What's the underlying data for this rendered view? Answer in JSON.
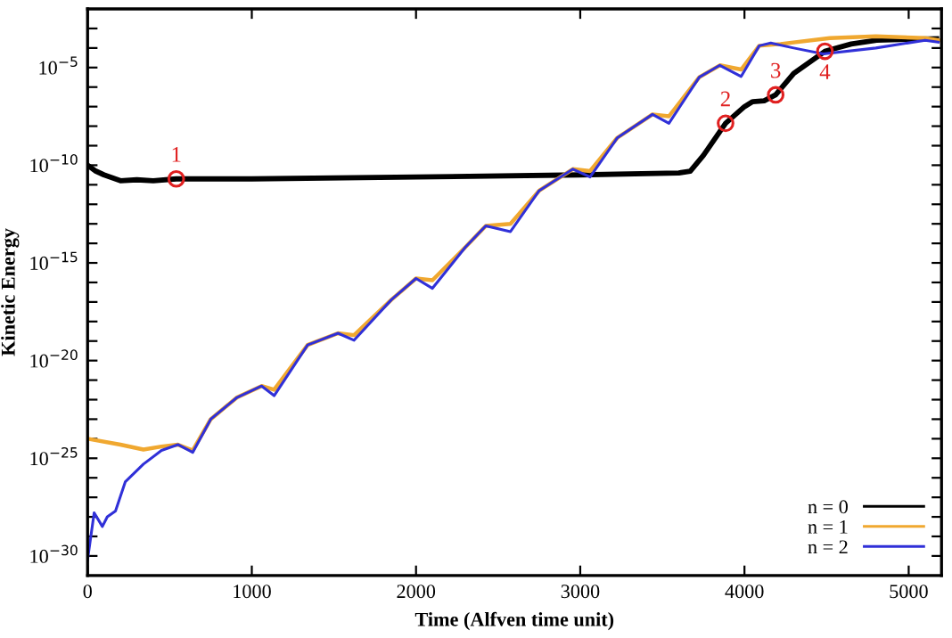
{
  "chart_data": {
    "type": "line",
    "xlabel": "Time (Alfven time unit)",
    "ylabel": "Kinetic Energy",
    "log": "y",
    "grid": false,
    "legend": "bottom right",
    "xlim": [
      0,
      5200
    ],
    "xticks": [
      0,
      1000,
      2000,
      3000,
      4000,
      5000
    ],
    "ylim": [
      1e-31,
      0.01
    ],
    "yticks": [
      {
        "value": 1e-30,
        "label": "10$^{−30}$"
      },
      {
        "value": 1e-29,
        "label": null
      },
      {
        "value": 1e-28,
        "label": null
      },
      {
        "value": 1e-27,
        "label": null
      },
      {
        "value": 1e-26,
        "label": null
      },
      {
        "value": 1e-25,
        "label": "10$^{−25}$"
      },
      {
        "value": 1e-24,
        "label": null
      },
      {
        "value": 1e-23,
        "label": null
      },
      {
        "value": 1e-22,
        "label": null
      },
      {
        "value": 1e-21,
        "label": null
      },
      {
        "value": 1e-20,
        "label": "10$^{−20}$"
      },
      {
        "value": 1e-19,
        "label": null
      },
      {
        "value": 1e-18,
        "label": null
      },
      {
        "value": 1e-17,
        "label": null
      },
      {
        "value": 1e-16,
        "label": null
      },
      {
        "value": 1e-15,
        "label": "10$^{−15}$"
      },
      {
        "value": 1e-14,
        "label": null
      },
      {
        "value": 1e-13,
        "label": null
      },
      {
        "value": 1e-12,
        "label": null
      },
      {
        "value": 1e-11,
        "label": null
      },
      {
        "value": 1e-10,
        "label": "10$^{−10}$"
      },
      {
        "value": 1e-09,
        "label": null
      },
      {
        "value": 1e-08,
        "label": null
      },
      {
        "value": 1e-07,
        "label": null
      },
      {
        "value": 1e-06,
        "label": null
      },
      {
        "value": 1e-05,
        "label": "10$^{−5}$"
      },
      {
        "value": 0.0001,
        "label": null
      },
      {
        "value": 0.001,
        "label": null
      }
    ],
    "series": [
      {
        "name": "n = 0",
        "color": "#000000",
        "x": [
          0,
          50,
          100,
          200,
          300,
          400,
          540,
          1000,
          2000,
          3000,
          3600,
          3670,
          3750,
          3885,
          4000,
          4050,
          4120,
          4190,
          4300,
          4490,
          4650,
          4805,
          5000,
          5170
        ],
        "values": [
          1e-10,
          5e-11,
          3.2e-11,
          1.6e-11,
          1.8e-11,
          1.6e-11,
          2e-11,
          2e-11,
          2.5e-11,
          3.2e-11,
          4e-11,
          5e-11,
          3.2e-10,
          1.4e-08,
          1e-07,
          1.8e-07,
          2e-07,
          4e-07,
          5e-06,
          6.8e-05,
          0.00016,
          0.00025,
          0.00028,
          0.0003
        ]
      },
      {
        "name": "n = 1",
        "color": "#f0a830",
        "x": [
          0,
          200,
          340,
          450,
          550,
          640,
          750,
          910,
          1060,
          1136,
          1340,
          1525,
          1623,
          1850,
          2000,
          2100,
          2300,
          2425,
          2575,
          2750,
          2955,
          3060,
          3225,
          3440,
          3540,
          3725,
          3850,
          3980,
          4090,
          4220,
          4520,
          4800,
          5100,
          5180
        ],
        "values": [
          1e-24,
          5e-25,
          2.8e-25,
          4e-25,
          5e-25,
          2.5e-25,
          1e-23,
          1.3e-22,
          5e-22,
          3.2e-22,
          6.3e-20,
          2.5e-19,
          2e-19,
          1.3e-17,
          1.6e-16,
          1.3e-16,
          6.3e-15,
          7.9e-14,
          1e-13,
          5e-12,
          6.3e-11,
          5e-11,
          2.5e-09,
          4e-08,
          3.2e-08,
          3.2e-06,
          1.3e-05,
          7.9e-06,
          0.00013,
          0.00016,
          0.00032,
          0.0004,
          0.00032,
          0.00025
        ]
      },
      {
        "name": "n = 2",
        "color": "#3030d8",
        "x": [
          0,
          40,
          90,
          120,
          170,
          230,
          340,
          450,
          550,
          640,
          750,
          910,
          1060,
          1136,
          1340,
          1525,
          1623,
          1850,
          2000,
          2100,
          2300,
          2425,
          2575,
          2750,
          2955,
          3060,
          3225,
          3440,
          3540,
          3725,
          3850,
          3980,
          4090,
          4160,
          4300,
          4480,
          4800,
          5100,
          5180
        ],
        "values": [
          6.3e-31,
          1.6e-28,
          3.2e-29,
          1e-28,
          2e-28,
          6.3e-27,
          5e-26,
          2.5e-25,
          5e-25,
          2e-25,
          1e-23,
          1.3e-22,
          5e-22,
          1.6e-22,
          6.3e-20,
          2.5e-19,
          1.1e-19,
          1.3e-17,
          1.6e-16,
          5e-17,
          6.3e-15,
          7.9e-14,
          4e-14,
          5e-12,
          6.3e-11,
          2.5e-11,
          2.5e-09,
          4e-08,
          1.4e-08,
          3.2e-06,
          1.3e-05,
          3.5e-06,
          0.00013,
          0.00018,
          0.0001,
          5e-05,
          0.0001,
          0.00025,
          0.0002
        ]
      }
    ],
    "annotations": [
      {
        "text": "1",
        "x": 540,
        "y": 2e-11
      },
      {
        "text": "2",
        "x": 3885,
        "y": 1.4e-08
      },
      {
        "text": "3",
        "x": 4190,
        "y": 4e-07
      },
      {
        "text": "4",
        "x": 4490,
        "y": 6.8e-05
      }
    ]
  }
}
